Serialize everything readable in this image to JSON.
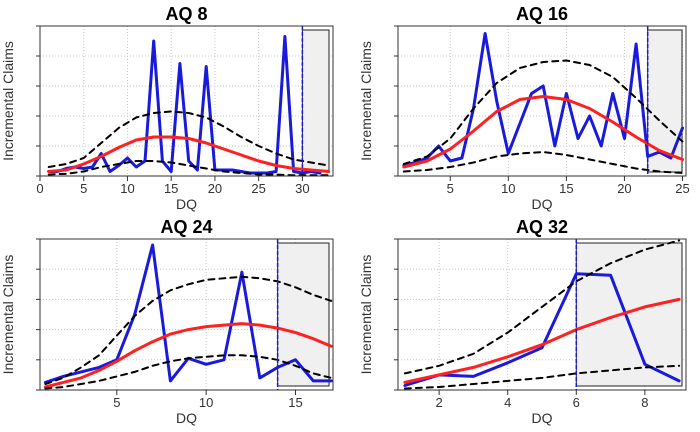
{
  "chart_data": [
    {
      "type": "line",
      "title": "AQ 8",
      "xlabel": "DQ",
      "ylabel": "Incremental Claims",
      "xlim": [
        0,
        33.5
      ],
      "ylim": [
        0,
        10
      ],
      "xticks": [
        0,
        5,
        10,
        15,
        20,
        25,
        30
      ],
      "grid": true,
      "forecast_start": 30,
      "series": [
        {
          "name": "Observed",
          "color": "#1a1adb",
          "x": [
            1,
            2,
            3,
            4,
            5,
            6,
            7,
            8,
            9,
            10,
            11,
            12,
            13,
            14,
            15,
            16,
            17,
            18,
            19,
            20,
            21,
            22,
            23,
            24,
            25,
            26,
            27,
            28,
            29,
            30,
            31,
            32
          ],
          "y": [
            0.3,
            0.3,
            0.5,
            0.6,
            0.5,
            0.6,
            1.5,
            0.3,
            0.7,
            1.2,
            0.6,
            1.0,
            9.0,
            1.0,
            0.3,
            7.5,
            1.0,
            0.4,
            7.3,
            0.4,
            0.4,
            0.4,
            0.3,
            0.2,
            0.2,
            0.2,
            0.3,
            9.3,
            0.3,
            0.2,
            0.3,
            0.2
          ]
        },
        {
          "name": "Mean",
          "color": "#ff2020",
          "x": [
            1,
            3,
            5,
            7,
            9,
            11,
            13,
            15,
            17,
            19,
            21,
            23,
            25,
            27,
            29,
            31,
            33
          ],
          "y": [
            0.3,
            0.4,
            0.8,
            1.3,
            1.9,
            2.4,
            2.6,
            2.6,
            2.5,
            2.2,
            1.8,
            1.4,
            1.0,
            0.7,
            0.5,
            0.4,
            0.3
          ]
        },
        {
          "name": "Upper",
          "color": "#000000",
          "dashed": true,
          "x": [
            1,
            3,
            5,
            7,
            9,
            11,
            13,
            15,
            17,
            19,
            21,
            23,
            25,
            27,
            29,
            31,
            33
          ],
          "y": [
            0.6,
            0.8,
            1.2,
            2.2,
            3.2,
            3.9,
            4.2,
            4.3,
            4.2,
            3.9,
            3.3,
            2.6,
            2.0,
            1.5,
            1.1,
            0.9,
            0.7
          ]
        },
        {
          "name": "Lower",
          "color": "#000000",
          "dashed": true,
          "x": [
            1,
            3,
            5,
            7,
            9,
            11,
            13,
            15,
            17,
            19,
            21,
            23,
            25,
            27,
            29,
            31,
            33
          ],
          "y": [
            0.1,
            0.15,
            0.3,
            0.6,
            0.8,
            1.0,
            1.0,
            0.9,
            0.7,
            0.5,
            0.3,
            0.2,
            0.1,
            0.1,
            0.05,
            0.05,
            0.05
          ]
        }
      ]
    },
    {
      "type": "line",
      "title": "AQ 16",
      "xlabel": "DQ",
      "ylabel": "Incremental Claims",
      "xlim": [
        0.5,
        25.3
      ],
      "ylim": [
        0,
        10
      ],
      "xticks": [
        5,
        10,
        15,
        20,
        25
      ],
      "grid": true,
      "forecast_start": 22,
      "series": [
        {
          "name": "Observed",
          "color": "#1a1adb",
          "x": [
            1,
            2,
            3,
            4,
            5,
            6,
            7,
            8,
            9,
            10,
            11,
            12,
            13,
            14,
            15,
            16,
            17,
            18,
            19,
            20,
            21,
            22,
            23,
            24,
            25
          ],
          "y": [
            0.7,
            0.9,
            1.2,
            2.0,
            1.0,
            1.2,
            4.5,
            9.5,
            5.0,
            1.5,
            3.5,
            5.5,
            6.0,
            2.0,
            5.5,
            2.5,
            4.0,
            2.0,
            5.5,
            2.5,
            8.8,
            1.3,
            1.6,
            1.2,
            3.2
          ]
        },
        {
          "name": "Mean",
          "color": "#ff2020",
          "x": [
            1,
            3,
            5,
            7,
            9,
            11,
            13,
            15,
            17,
            19,
            21,
            23,
            25
          ],
          "y": [
            0.6,
            1.0,
            1.8,
            3.0,
            4.3,
            5.1,
            5.3,
            5.1,
            4.5,
            3.6,
            2.6,
            1.7,
            1.1
          ]
        },
        {
          "name": "Upper",
          "color": "#000000",
          "dashed": true,
          "x": [
            1,
            3,
            5,
            7,
            9,
            11,
            13,
            15,
            17,
            19,
            21,
            23,
            25
          ],
          "y": [
            0.8,
            1.3,
            2.5,
            4.5,
            6.2,
            7.2,
            7.6,
            7.7,
            7.4,
            6.6,
            5.2,
            3.7,
            2.3
          ]
        },
        {
          "name": "Lower",
          "color": "#000000",
          "dashed": true,
          "x": [
            1,
            3,
            5,
            7,
            9,
            11,
            13,
            15,
            17,
            19,
            21,
            23,
            25
          ],
          "y": [
            0.3,
            0.4,
            0.6,
            0.9,
            1.3,
            1.5,
            1.6,
            1.4,
            1.1,
            0.8,
            0.5,
            0.3,
            0.2
          ]
        }
      ]
    },
    {
      "type": "line",
      "title": "AQ 24",
      "xlabel": "DQ",
      "ylabel": "Incremental Claims",
      "xlim": [
        0.7,
        17.1
      ],
      "ylim": [
        0,
        10
      ],
      "xticks": [
        5,
        10,
        15
      ],
      "grid": true,
      "forecast_start": 14,
      "series": [
        {
          "name": "Observed",
          "color": "#1a1adb",
          "x": [
            1,
            2,
            3,
            4,
            5,
            6,
            7,
            8,
            9,
            10,
            11,
            12,
            13,
            14,
            15,
            16,
            17
          ],
          "y": [
            0.5,
            0.9,
            1.2,
            1.5,
            2.0,
            5.0,
            9.6,
            0.6,
            2.1,
            1.7,
            2.0,
            7.8,
            0.8,
            1.5,
            2.0,
            0.6,
            0.6
          ]
        },
        {
          "name": "Mean",
          "color": "#ff2020",
          "x": [
            1,
            2,
            3,
            4,
            5,
            6,
            7,
            8,
            9,
            10,
            11,
            12,
            13,
            14,
            15,
            16,
            17
          ],
          "y": [
            0.2,
            0.5,
            0.8,
            1.3,
            1.9,
            2.6,
            3.2,
            3.7,
            4.0,
            4.2,
            4.3,
            4.4,
            4.3,
            4.1,
            3.8,
            3.4,
            2.9
          ]
        },
        {
          "name": "Upper",
          "color": "#000000",
          "dashed": true,
          "x": [
            1,
            2,
            3,
            4,
            5,
            6,
            7,
            8,
            9,
            10,
            11,
            12,
            13,
            14,
            15,
            16,
            17
          ],
          "y": [
            0.4,
            0.8,
            1.5,
            2.3,
            3.6,
            4.9,
            5.9,
            6.6,
            7.0,
            7.3,
            7.4,
            7.5,
            7.4,
            7.2,
            6.8,
            6.3,
            5.9
          ]
        },
        {
          "name": "Lower",
          "color": "#000000",
          "dashed": true,
          "x": [
            1,
            2,
            3,
            4,
            5,
            6,
            7,
            8,
            9,
            10,
            11,
            12,
            13,
            14,
            15,
            16,
            17
          ],
          "y": [
            0.1,
            0.2,
            0.4,
            0.6,
            0.9,
            1.2,
            1.6,
            1.9,
            2.1,
            2.2,
            2.3,
            2.3,
            2.2,
            2.0,
            1.6,
            1.1,
            0.8
          ]
        }
      ]
    },
    {
      "type": "line",
      "title": "AQ 32",
      "xlabel": "DQ",
      "ylabel": "Incremental Claims",
      "xlim": [
        0.8,
        9.2
      ],
      "ylim": [
        0,
        10
      ],
      "xticks": [
        2,
        4,
        6,
        8
      ],
      "grid": true,
      "forecast_start": 6,
      "series": [
        {
          "name": "Observed",
          "color": "#1a1adb",
          "x": [
            1,
            2,
            3,
            4,
            5,
            6,
            7,
            8,
            9
          ],
          "y": [
            0.3,
            1.0,
            0.9,
            1.8,
            2.8,
            7.7,
            7.6,
            1.7,
            0.6
          ]
        },
        {
          "name": "Mean",
          "color": "#ff2020",
          "x": [
            1,
            2,
            3,
            4,
            5,
            6,
            7,
            8,
            9
          ],
          "y": [
            0.5,
            1.0,
            1.5,
            2.2,
            3.0,
            4.0,
            4.8,
            5.5,
            6.0
          ]
        },
        {
          "name": "Upper",
          "color": "#000000",
          "dashed": true,
          "x": [
            1,
            2,
            3,
            4,
            5,
            6,
            7,
            8,
            9
          ],
          "y": [
            1.1,
            1.6,
            2.4,
            3.8,
            5.5,
            7.2,
            8.4,
            9.3,
            9.9
          ]
        },
        {
          "name": "Lower",
          "color": "#000000",
          "dashed": true,
          "x": [
            1,
            2,
            3,
            4,
            5,
            6,
            7,
            8,
            9
          ],
          "y": [
            0.1,
            0.2,
            0.4,
            0.6,
            0.8,
            1.1,
            1.3,
            1.5,
            1.6
          ]
        }
      ]
    }
  ]
}
